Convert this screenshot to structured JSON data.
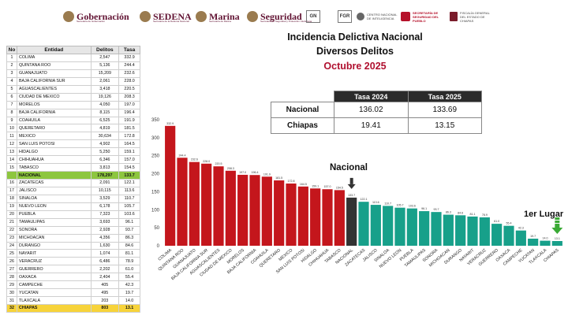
{
  "header": {
    "logos": [
      {
        "name": "gobernacion",
        "main": "Gobernación",
        "sub": "Secretaría de Gobernación"
      },
      {
        "name": "sedena",
        "main": "SEDENA",
        "sub": "Secretaría de la Defensa Nacional"
      },
      {
        "name": "marina",
        "main": "Marina",
        "sub": "Secretaría de Marina"
      },
      {
        "name": "seguridad",
        "main": "Seguridad",
        "sub": "Secretaría de Seguridad y Protección Ciudadana"
      },
      {
        "name": "gn",
        "main": "GN"
      },
      {
        "name": "fgr",
        "main": "FGR"
      },
      {
        "name": "cni",
        "main": "CENTRO NACIONAL DE INTELIGENCIA"
      },
      {
        "name": "sspc-chiapas",
        "main": "SECRETARÍA DE SEGURIDAD DEL PUEBLO"
      },
      {
        "name": "fiscalia-chiapas",
        "main": "FISCALÍA GENERAL DEL ESTADO DE CHIAPAS"
      }
    ]
  },
  "left_table": {
    "headers": [
      "No",
      "Entidad",
      "Delitos",
      "Tasa"
    ],
    "rows": [
      [
        "1",
        "COLIMA",
        "2,547",
        "332.9"
      ],
      [
        "2",
        "QUINTANA ROO",
        "5,136",
        "244.4"
      ],
      [
        "3",
        "GUANAJUATO",
        "15,209",
        "232.6"
      ],
      [
        "4",
        "BAJA CALIFORNIA SUR",
        "2,061",
        "228.0"
      ],
      [
        "5",
        "AGUASCALIENTES",
        "3,418",
        "220.5"
      ],
      [
        "6",
        "CIUDAD DE MEXICO",
        "19,126",
        "208.3"
      ],
      [
        "7",
        "MORELOS",
        "4,050",
        "197.0"
      ],
      [
        "8",
        "BAJA CALIFORNIA",
        "8,115",
        "196.4"
      ],
      [
        "9",
        "COAHUILA",
        "6,525",
        "191.9"
      ],
      [
        "10",
        "QUERETARO",
        "4,819",
        "181.5"
      ],
      [
        "11",
        "MEXICO",
        "30,634",
        "172.8"
      ],
      [
        "12",
        "SAN LUIS POTOSI",
        "4,902",
        "164.5"
      ],
      [
        "13",
        "HIDALGO",
        "5,250",
        "159.1"
      ],
      [
        "14",
        "CHIHUAHUA",
        "6,346",
        "157.0"
      ],
      [
        "15",
        "TABASCO",
        "3,813",
        "154.5"
      ],
      [
        "",
        "NACIONAL",
        "178,297",
        "133.7"
      ],
      [
        "16",
        "ZACATECAS",
        "2,091",
        "122.1"
      ],
      [
        "17",
        "JALISCO",
        "10,115",
        "113.6"
      ],
      [
        "18",
        "SINALOA",
        "3,529",
        "110.7"
      ],
      [
        "19",
        "NUEVO LEON",
        "6,178",
        "105.7"
      ],
      [
        "20",
        "PUEBLA",
        "7,323",
        "103.6"
      ],
      [
        "21",
        "TAMAULIPAS",
        "3,693",
        "96.1"
      ],
      [
        "22",
        "SONORA",
        "2,928",
        "93.7"
      ],
      [
        "23",
        "MICHOACAN",
        "4,356",
        "86.3"
      ],
      [
        "24",
        "DURANGO",
        "1,630",
        "84.6"
      ],
      [
        "25",
        "NAYARIT",
        "1,074",
        "81.1"
      ],
      [
        "26",
        "VERACRUZ",
        "6,486",
        "78.9"
      ],
      [
        "27",
        "GUERRERO",
        "2,202",
        "61.0"
      ],
      [
        "28",
        "OAXACA",
        "2,404",
        "55.4"
      ],
      [
        "29",
        "CAMPECHE",
        "405",
        "42.3"
      ],
      [
        "30",
        "YUCATAN",
        "495",
        "19.7"
      ],
      [
        "31",
        "TLAXCALA",
        "203",
        "14.0"
      ],
      [
        "32",
        "CHIAPAS",
        "803",
        "13.1"
      ]
    ]
  },
  "titles": {
    "line1": "Incidencia Delictiva Nacional",
    "line2": "Diversos Delitos",
    "line3": "Octubre 2025"
  },
  "rate_table": {
    "headers": [
      "Tasa 2024",
      "Tasa 2025"
    ],
    "rows": [
      {
        "label": "Nacional",
        "v2024": "136.02",
        "v2025": "133.69"
      },
      {
        "label": "Chiapas",
        "v2024": "19.41",
        "v2025": "13.15"
      }
    ]
  },
  "annotations": {
    "nacional": "Nacional",
    "primer_lugar": "1er Lugar"
  },
  "chart_data": {
    "type": "bar",
    "ylim": [
      0,
      350
    ],
    "yticks": [
      0,
      50,
      100,
      150,
      200,
      250,
      300,
      350
    ],
    "grid": false,
    "colors": {
      "above": "#c4161c",
      "nacional": "#333333",
      "below": "#17a08a",
      "arrow_nacional": "#333333",
      "arrow_primer": "#3aaa35"
    },
    "categories": [
      "COLIMA",
      "QUINTANA ROO",
      "GUANAJUATO",
      "BAJA CALIFORNIA SUR",
      "AGUASCALIENTES",
      "CIUDAD DE MEXICO",
      "MORELOS",
      "BAJA CALIFORNIA",
      "COAHUILA",
      "QUERETARO",
      "MEXICO",
      "SAN LUIS POTOSI",
      "HIDALGO",
      "CHIHUAHUA",
      "TABASCO",
      "NACIONAL",
      "ZACATECAS",
      "JALISCO",
      "SINALOA",
      "NUEVO LEON",
      "PUEBLA",
      "TAMAULIPAS",
      "SONORA",
      "MICHOACAN",
      "DURANGO",
      "NAYARIT",
      "VERACRUZ",
      "GUERRERO",
      "OAXACA",
      "CAMPECHE",
      "YUCATAN",
      "TLAXCALA",
      "CHIAPAS"
    ],
    "values": [
      332.9,
      244.4,
      232.6,
      228.0,
      220.5,
      208.3,
      197.0,
      196.4,
      191.9,
      181.5,
      172.8,
      164.5,
      159.1,
      157.0,
      154.5,
      133.7,
      122.1,
      113.6,
      110.7,
      105.7,
      103.6,
      96.1,
      93.7,
      86.3,
      84.6,
      81.1,
      78.9,
      61.0,
      55.4,
      42.3,
      19.7,
      14.0,
      13.1
    ],
    "data_labels": [
      "332.9",
      "244.4",
      "232.6",
      "228.0",
      "220.5",
      "208.3",
      "197.0",
      "196.4",
      "191.9",
      "181.5",
      "172.8",
      "164.5",
      "159.1",
      "157.0",
      "154.5",
      "133.7",
      "122.1",
      "113.6",
      "110.7",
      "105.7",
      "103.6",
      "96.1",
      "93.7",
      "86.3",
      "84.6",
      "81.1",
      "78.9",
      "61.0",
      "55.4",
      "42.3",
      "19.7",
      "14.0",
      "13.1"
    ]
  }
}
